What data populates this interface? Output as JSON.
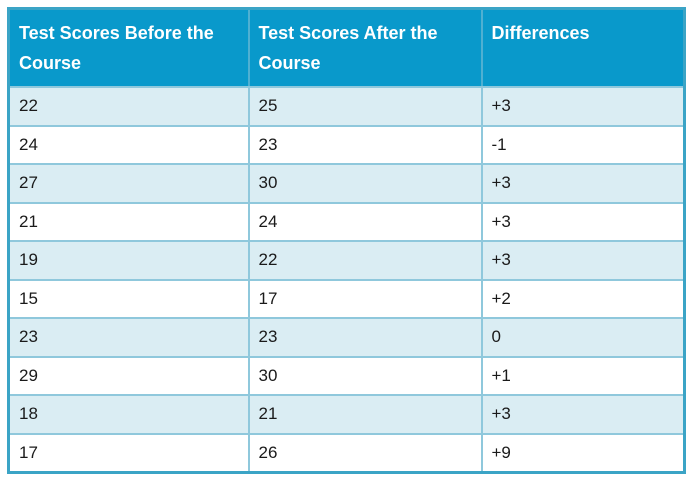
{
  "chart_data": {
    "type": "table",
    "columns": [
      "Test Scores Before the Course",
      "Test Scores After the Course",
      "Differences"
    ],
    "rows": [
      [
        "22",
        "25",
        "+3"
      ],
      [
        "24",
        "23",
        "-1"
      ],
      [
        "27",
        "30",
        "+3"
      ],
      [
        "21",
        "24",
        "+3"
      ],
      [
        "19",
        "22",
        "+3"
      ],
      [
        "15",
        "17",
        "+2"
      ],
      [
        "23",
        "23",
        "0"
      ],
      [
        "29",
        "30",
        "+1"
      ],
      [
        "18",
        "21",
        "+3"
      ],
      [
        "17",
        "26",
        "+9"
      ]
    ]
  },
  "colors": {
    "header_bg": "#0999CB",
    "header_divider": "#4FB0D2",
    "stripe": "#DAEDF3",
    "row_white": "#FFFFFF",
    "border_inner": "#8FC8DC",
    "border_outer": "#3BA4C6",
    "header_text": "#FFFFFF",
    "body_text": "#1A1A1A"
  }
}
